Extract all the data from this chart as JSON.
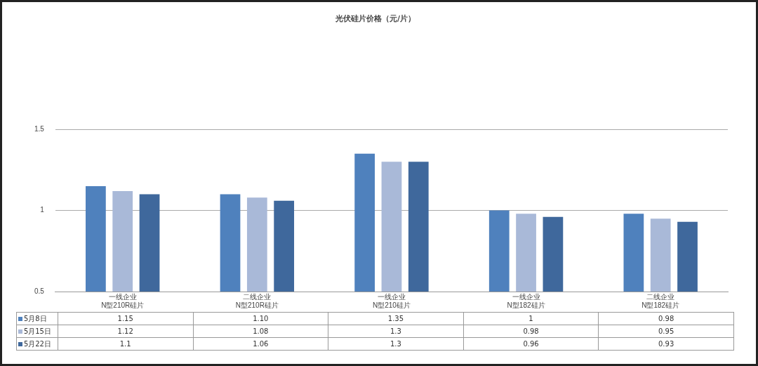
{
  "chart_data": {
    "type": "bar",
    "title": "光伏硅片价格（元/片）",
    "categories": [
      "一线企业\nN型210R硅片",
      "二线企业\nN型210R硅片",
      "一线企业\nN型210硅片",
      "一线企业\nN型182硅片",
      "二线企业\nN型182硅片"
    ],
    "series": [
      {
        "name": "5月8日",
        "color": "#4f81bd",
        "values": [
          1.15,
          1.1,
          1.35,
          1,
          0.98
        ],
        "value_labels": [
          "1.15",
          "1.10",
          "1.35",
          "1",
          "0.98"
        ]
      },
      {
        "name": "5月15日",
        "color": "#a9b9d8",
        "values": [
          1.12,
          1.08,
          1.3,
          0.98,
          0.95
        ],
        "value_labels": [
          "1.12",
          "1.08",
          "1.3",
          "0.98",
          "0.95"
        ]
      },
      {
        "name": "5月22日",
        "color": "#3f689c",
        "values": [
          1.1,
          1.06,
          1.3,
          0.96,
          0.93
        ],
        "value_labels": [
          "1.1",
          "1.06",
          "1.3",
          "0.96",
          "0.93"
        ]
      }
    ],
    "ylim": [
      0.5,
      1.5
    ],
    "yticks": [
      0.5,
      1,
      1.5
    ],
    "grid": "y",
    "legend": "bottom"
  }
}
